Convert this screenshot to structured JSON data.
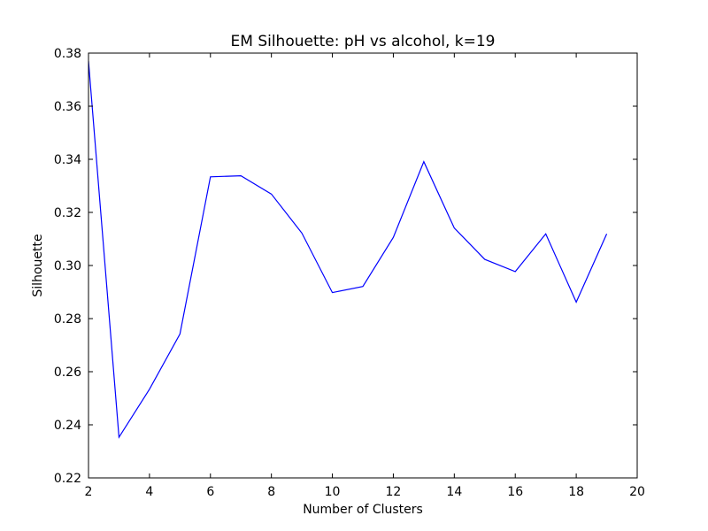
{
  "chart_data": {
    "type": "line",
    "title": "EM Silhouette: pH vs alcohol, k=19",
    "xlabel": "Number of Clusters",
    "ylabel": "Silhouette",
    "xlim": [
      2,
      20
    ],
    "ylim": [
      0.22,
      0.38
    ],
    "xticks": [
      2,
      4,
      6,
      8,
      10,
      12,
      14,
      16,
      18,
      20
    ],
    "yticks": [
      0.22,
      0.24,
      0.26,
      0.28,
      0.3,
      0.32,
      0.34,
      0.36,
      0.38
    ],
    "xtick_labels": [
      "2",
      "4",
      "6",
      "8",
      "10",
      "12",
      "14",
      "16",
      "18",
      "20"
    ],
    "ytick_labels": [
      "0.22",
      "0.24",
      "0.26",
      "0.28",
      "0.30",
      "0.32",
      "0.34",
      "0.36",
      "0.38"
    ],
    "grid": false,
    "series": [
      {
        "color": "#0000ff",
        "x": [
          2,
          3,
          4,
          5,
          6,
          7,
          8,
          9,
          10,
          11,
          12,
          13,
          14,
          15,
          16,
          17,
          18,
          19
        ],
        "y": [
          0.377,
          0.2353,
          0.2534,
          0.2742,
          0.3334,
          0.3338,
          0.3269,
          0.3122,
          0.2898,
          0.2921,
          0.3106,
          0.3391,
          0.3141,
          0.3023,
          0.2977,
          0.3119,
          0.2862,
          0.3119
        ]
      }
    ]
  }
}
